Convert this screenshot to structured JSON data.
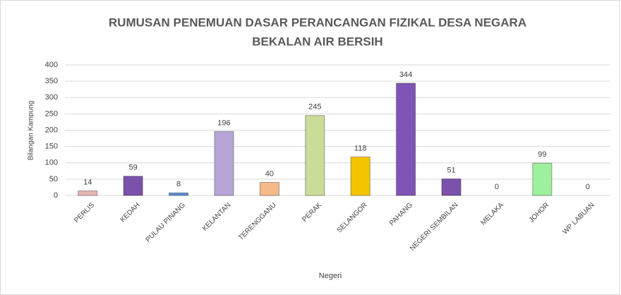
{
  "chart_data": {
    "type": "bar",
    "title": [
      "RUMUSAN PENEMUAN DASAR PERANCANGAN FIZIKAL DESA NEGARA",
      "BEKALAN AIR BERSIH"
    ],
    "x_label": "Negeri",
    "y_label": "Bilangan Kampung",
    "categories": [
      "PERLIS",
      "KEDAH",
      "PULAU PINANG",
      "KELANTAN",
      "TERENGGANU",
      "PERAK",
      "SELANGOR",
      "PAHANG",
      "NEGERI SEMBILAN",
      "MELAKA",
      "JOHOR",
      "WP LABUAN"
    ],
    "values": [
      14,
      59,
      8,
      196,
      40,
      245,
      118,
      344,
      51,
      0,
      99,
      0
    ],
    "colors": [
      "#e8b4b4",
      "#7b52ab",
      "#5b8fd6",
      "#b8a5d8",
      "#f5b98a",
      "#c9dc98",
      "#f5c400",
      "#7e55b4",
      "#7b52ab",
      "#9a9a9a",
      "#9ef09e",
      "#9a9a9a"
    ],
    "ylim": [
      0,
      400
    ],
    "yticks": [
      0,
      50,
      100,
      150,
      200,
      250,
      300,
      350,
      400
    ],
    "grid": true
  }
}
